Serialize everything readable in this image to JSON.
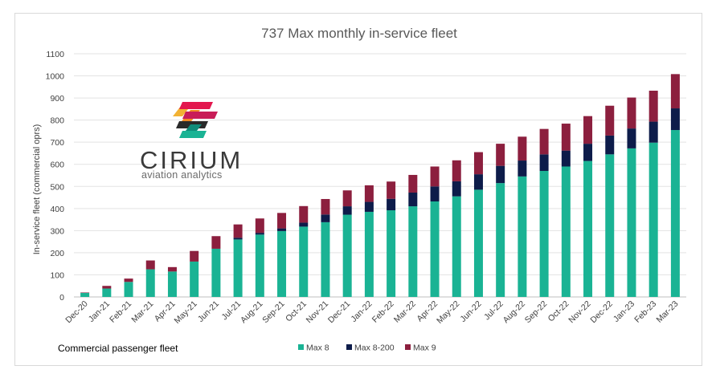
{
  "chart_data": {
    "type": "bar",
    "stacked": true,
    "title": "737 Max monthly in-service fleet",
    "ylabel": "In-service fleet (commercial oprs)",
    "xlabel": "",
    "ylim": [
      0,
      1100
    ],
    "yticks": [
      0,
      100,
      200,
      300,
      400,
      500,
      600,
      700,
      800,
      900,
      1000,
      1100
    ],
    "grid": true,
    "legend_position": "bottom",
    "categories": [
      "Dec-20",
      "Jan-21",
      "Feb-21",
      "Mar-21",
      "Apr-21",
      "May-21",
      "Jun-21",
      "Jul-21",
      "Aug-21",
      "Sep-21",
      "Oct-21",
      "Nov-21",
      "Dec-21",
      "Jan-22",
      "Feb-22",
      "Mar-22",
      "Apr-22",
      "May-22",
      "Jun-22",
      "Jul-22",
      "Aug-22",
      "Sep-22",
      "Oct-22",
      "Nov-22",
      "Dec-22",
      "Jan-23",
      "Feb-23",
      "Mar-23"
    ],
    "series": [
      {
        "name": "Max 8",
        "color": "#1ab394",
        "values": [
          18,
          38,
          68,
          125,
          115,
          160,
          218,
          260,
          282,
          298,
          318,
          338,
          372,
          385,
          392,
          410,
          432,
          455,
          485,
          515,
          545,
          570,
          590,
          615,
          645,
          672,
          698,
          755
        ]
      },
      {
        "name": "Max 8-200",
        "color": "#0d1c4a",
        "values": [
          0,
          0,
          0,
          0,
          0,
          0,
          0,
          8,
          8,
          12,
          18,
          35,
          38,
          45,
          52,
          62,
          68,
          68,
          70,
          78,
          72,
          75,
          72,
          78,
          85,
          90,
          95,
          98
        ]
      },
      {
        "name": "Max 9",
        "color": "#8c1f3e",
        "values": [
          2,
          12,
          15,
          40,
          20,
          48,
          57,
          60,
          65,
          70,
          75,
          70,
          72,
          75,
          78,
          80,
          90,
          95,
          100,
          100,
          108,
          115,
          122,
          125,
          135,
          140,
          140,
          155
        ]
      }
    ]
  },
  "footer": {
    "label": "Commercial passenger fleet"
  },
  "logo": {
    "brand": "CIRIUM",
    "tagline": "aviation analytics"
  }
}
